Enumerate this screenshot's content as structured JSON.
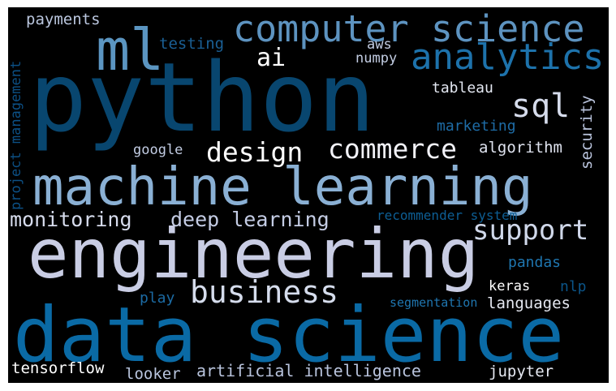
{
  "word_cloud": {
    "background": "#000000",
    "words": [
      {
        "text": "python",
        "color": "#08466f"
      },
      {
        "text": "data science",
        "color": "#0a6aa5"
      },
      {
        "text": "engineering",
        "color": "#c9cde4"
      },
      {
        "text": "machine learning",
        "color": "#8ab0d4"
      },
      {
        "text": "computer science",
        "color": "#5d93c0"
      },
      {
        "text": "ml",
        "color": "#5b95c1"
      },
      {
        "text": "analytics",
        "color": "#1d72ab"
      },
      {
        "text": "business",
        "color": "#d5dcec"
      },
      {
        "text": "commerce",
        "color": "#f2f2f8"
      },
      {
        "text": "design",
        "color": "#ffffff"
      },
      {
        "text": "sql",
        "color": "#d6dcec"
      },
      {
        "text": "support",
        "color": "#d0d8ea"
      },
      {
        "text": "monitoring",
        "color": "#d6dbec"
      },
      {
        "text": "deep learning",
        "color": "#c4cce4"
      },
      {
        "text": "ai",
        "color": "#ffffff"
      },
      {
        "text": "payments",
        "color": "#bac6de"
      },
      {
        "text": "testing",
        "color": "#1a5f94"
      },
      {
        "text": "aws",
        "color": "#c2cce2"
      },
      {
        "text": "numpy",
        "color": "#c2cce2"
      },
      {
        "text": "tableau",
        "color": "#e4e8f2"
      },
      {
        "text": "marketing",
        "color": "#1e6ca6"
      },
      {
        "text": "google",
        "color": "#c3cde4"
      },
      {
        "text": "algorithm",
        "color": "#dfe3ef"
      },
      {
        "text": "security",
        "color": "#b9c3dc"
      },
      {
        "text": "project management",
        "color": "#0c5085"
      },
      {
        "text": "recommender system",
        "color": "#0d5e94"
      },
      {
        "text": "pandas",
        "color": "#1f76b0"
      },
      {
        "text": "keras",
        "color": "#ffffff"
      },
      {
        "text": "nlp",
        "color": "#0b5488"
      },
      {
        "text": "play",
        "color": "#1c6ba4"
      },
      {
        "text": "segmentation",
        "color": "#1f76b0"
      },
      {
        "text": "languages",
        "color": "#e6e9f2"
      },
      {
        "text": "tensorflow",
        "color": "#ffffff"
      },
      {
        "text": "looker",
        "color": "#b9c5de"
      },
      {
        "text": "artificial intelligence",
        "color": "#b8c3dc"
      },
      {
        "text": "jupyter",
        "color": "#e6e9f2"
      }
    ]
  }
}
